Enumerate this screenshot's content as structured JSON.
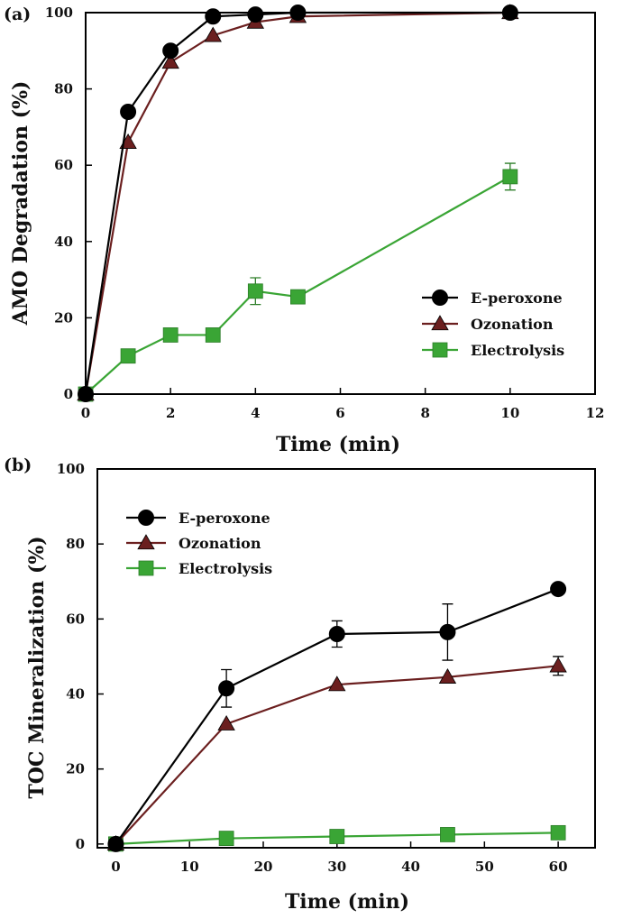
{
  "chart_data": [
    {
      "type": "line",
      "panel_label": "(a)",
      "xlabel": "Time (min)",
      "ylabel": "AMO Degradation (%)",
      "xlim": [
        0,
        12
      ],
      "ylim": [
        0,
        100
      ],
      "xticks": [
        0,
        2,
        4,
        6,
        8,
        10,
        12
      ],
      "yticks": [
        0,
        20,
        40,
        60,
        80,
        100
      ],
      "legend_placement": "bottom-right",
      "series": [
        {
          "name": "E-peroxone",
          "marker": "circle",
          "color": "#000000",
          "x": [
            0,
            1,
            2,
            3,
            4,
            5,
            10
          ],
          "y": [
            0,
            74,
            90,
            99,
            99.5,
            100,
            100
          ]
        },
        {
          "name": "Ozonation",
          "marker": "triangle",
          "color": "#6b1f1f",
          "x": [
            0,
            1,
            2,
            3,
            4,
            5,
            10
          ],
          "y": [
            0,
            66,
            87,
            94,
            97.5,
            99,
            100
          ]
        },
        {
          "name": "Electrolysis",
          "marker": "square",
          "color": "#3aa535",
          "x": [
            0,
            1,
            2,
            3,
            4,
            5,
            10
          ],
          "y": [
            0,
            10,
            15.5,
            15.5,
            27,
            25.5,
            57
          ],
          "err": [
            0,
            0,
            0,
            0,
            3.5,
            0,
            3.5
          ]
        }
      ]
    },
    {
      "type": "line",
      "panel_label": "(b)",
      "xlabel": "Time (min)",
      "ylabel": "TOC Mineralization (%)",
      "xlim": [
        -2.5,
        65
      ],
      "ylim": [
        -1,
        100
      ],
      "xticks": [
        0,
        10,
        20,
        30,
        40,
        50,
        60
      ],
      "yticks": [
        0,
        20,
        40,
        60,
        80,
        100
      ],
      "legend_placement": "top-left",
      "series": [
        {
          "name": "E-peroxone",
          "marker": "circle",
          "color": "#000000",
          "x": [
            0,
            15,
            30,
            45,
            60
          ],
          "y": [
            0,
            41.5,
            56,
            56.5,
            68
          ],
          "err": [
            0,
            5,
            3.5,
            7.5,
            0
          ]
        },
        {
          "name": "Ozonation",
          "marker": "triangle",
          "color": "#6b1f1f",
          "x": [
            0,
            15,
            30,
            45,
            60
          ],
          "y": [
            0,
            32,
            42.5,
            44.5,
            47.5
          ],
          "err": [
            0,
            0,
            0,
            0,
            2.5
          ]
        },
        {
          "name": "Electrolysis",
          "marker": "square",
          "color": "#3aa535",
          "x": [
            0,
            15,
            30,
            45,
            60
          ],
          "y": [
            0,
            1.5,
            2,
            2.5,
            3
          ],
          "err": [
            0,
            0,
            0,
            0,
            0
          ]
        }
      ]
    }
  ]
}
